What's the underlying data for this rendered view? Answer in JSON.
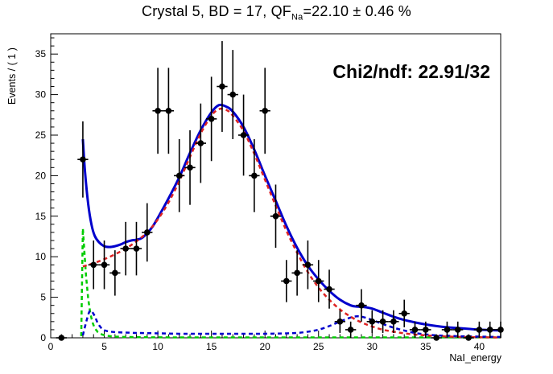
{
  "title": {
    "pre": "Crystal 5, BD = 17, QF",
    "sub": "Na",
    "post": "=22.10 ± 0.46 %"
  },
  "annotation": {
    "text": "Chi2/ndf: 22.91/32"
  },
  "colors": {
    "fit_blue": "#0000cc",
    "signal_red": "#dd2222",
    "background_green": "#00cc00",
    "data_black": "#000000"
  },
  "chart_data": {
    "type": "scatter",
    "title": "Crystal 5, BD = 17, QF_Na = 22.10 ± 0.46 %",
    "xlabel": "NaI_energy",
    "ylabel": "Events / ( 1 )",
    "xlim": [
      0,
      42
    ],
    "ylim": [
      0,
      37.5
    ],
    "x_major_ticks": [
      0,
      5,
      10,
      15,
      20,
      25,
      30,
      35,
      40
    ],
    "y_major_ticks": [
      0,
      5,
      10,
      15,
      20,
      25,
      30,
      35
    ],
    "minor_tick_step": 1,
    "grid": false,
    "legend": "none",
    "data_points": [
      [
        1,
        0,
        0
      ],
      [
        3,
        22,
        4.7
      ],
      [
        4,
        9,
        3
      ],
      [
        5,
        9,
        3
      ],
      [
        6,
        8,
        2.8
      ],
      [
        7,
        11,
        3.3
      ],
      [
        8,
        11,
        3.3
      ],
      [
        9,
        13,
        3.6
      ],
      [
        10,
        28,
        5.3
      ],
      [
        11,
        28,
        5.3
      ],
      [
        12,
        20,
        4.5
      ],
      [
        13,
        21,
        4.6
      ],
      [
        14,
        24,
        4.9
      ],
      [
        15,
        27,
        5.2
      ],
      [
        16,
        31,
        5.6
      ],
      [
        17,
        30,
        5.5
      ],
      [
        18,
        25,
        5
      ],
      [
        19,
        20,
        4.5
      ],
      [
        20,
        28,
        5.3
      ],
      [
        21,
        15,
        3.9
      ],
      [
        22,
        7,
        2.6
      ],
      [
        23,
        8,
        2.8
      ],
      [
        24,
        9,
        3
      ],
      [
        25,
        7,
        2.6
      ],
      [
        26,
        6,
        2.4
      ],
      [
        27,
        2,
        1.4
      ],
      [
        28,
        1,
        1
      ],
      [
        29,
        4,
        2
      ],
      [
        30,
        2,
        1.4
      ],
      [
        31,
        2,
        1.4
      ],
      [
        32,
        2,
        1.4
      ],
      [
        33,
        3,
        1.7
      ],
      [
        34,
        1,
        1
      ],
      [
        35,
        1,
        1
      ],
      [
        36,
        0,
        0
      ],
      [
        37,
        1,
        1
      ],
      [
        38,
        1,
        1
      ],
      [
        39,
        0,
        0
      ],
      [
        40,
        1,
        1
      ],
      [
        41,
        1,
        1
      ],
      [
        42,
        1,
        1
      ]
    ],
    "series": [
      {
        "name": "exp-background-green",
        "color": "#00cc00",
        "dash": "5 4",
        "width": 2.5,
        "smooth": false,
        "points": [
          [
            2.85,
            0.2
          ],
          [
            3.0,
            13.5
          ],
          [
            3.15,
            10.5
          ],
          [
            3.3,
            7.6
          ],
          [
            3.5,
            4.8
          ],
          [
            3.7,
            3.0
          ],
          [
            3.9,
            1.9
          ],
          [
            4.1,
            1.2
          ],
          [
            4.4,
            0.7
          ],
          [
            4.8,
            0.4
          ],
          [
            5.2,
            0.25
          ],
          [
            6,
            0.15
          ],
          [
            7,
            0.1
          ],
          [
            8,
            0.08
          ],
          [
            10,
            0.06
          ],
          [
            12,
            0.05
          ],
          [
            15,
            0.05
          ],
          [
            18,
            0.05
          ],
          [
            21,
            0.05
          ],
          [
            24,
            0.05
          ],
          [
            27,
            0.05
          ],
          [
            30,
            0.05
          ],
          [
            33,
            0.05
          ],
          [
            36,
            0.05
          ],
          [
            39,
            0.05
          ],
          [
            42,
            0.05
          ]
        ]
      },
      {
        "name": "nai-background-blue-dashed",
        "color": "#0000cc",
        "dash": "5 4",
        "width": 2.5,
        "smooth": true,
        "points": [
          [
            3,
            0.3
          ],
          [
            3.3,
            1.9
          ],
          [
            3.6,
            3.2
          ],
          [
            3.8,
            3.3
          ],
          [
            4.1,
            2.7
          ],
          [
            4.4,
            1.8
          ],
          [
            4.8,
            1.1
          ],
          [
            5.2,
            0.85
          ],
          [
            6,
            0.7
          ],
          [
            7,
            0.65
          ],
          [
            8,
            0.6
          ],
          [
            10,
            0.55
          ],
          [
            12,
            0.5
          ],
          [
            14,
            0.5
          ],
          [
            16,
            0.5
          ],
          [
            18,
            0.5
          ],
          [
            20,
            0.5
          ],
          [
            22,
            0.55
          ],
          [
            23,
            0.6
          ],
          [
            24,
            0.75
          ],
          [
            25,
            1.0
          ],
          [
            26,
            1.45
          ],
          [
            27,
            2.0
          ],
          [
            28,
            2.5
          ],
          [
            28.6,
            2.65
          ],
          [
            29.2,
            2.55
          ],
          [
            30,
            2.2
          ],
          [
            31,
            1.7
          ],
          [
            32,
            1.25
          ],
          [
            33,
            0.9
          ],
          [
            34,
            0.6
          ],
          [
            35,
            0.42
          ],
          [
            36,
            0.3
          ],
          [
            37,
            0.25
          ],
          [
            38,
            0.2
          ],
          [
            39,
            0.17
          ],
          [
            40,
            0.15
          ],
          [
            41,
            0.12
          ],
          [
            42,
            0.1
          ]
        ]
      },
      {
        "name": "total-fit-blue-solid",
        "color": "#0000cc",
        "dash": "",
        "width": 3,
        "smooth": true,
        "points": [
          [
            3,
            24.5
          ],
          [
            3.2,
            20.5
          ],
          [
            3.5,
            16.5
          ],
          [
            3.8,
            14.0
          ],
          [
            4.1,
            12.6
          ],
          [
            4.5,
            11.8
          ],
          [
            5,
            11.3
          ],
          [
            5.5,
            11.2
          ],
          [
            6,
            11.3
          ],
          [
            6.5,
            11.5
          ],
          [
            7,
            11.8
          ],
          [
            7.5,
            12.0
          ],
          [
            8,
            12.1
          ],
          [
            8.5,
            12.3
          ],
          [
            9,
            12.9
          ],
          [
            9.5,
            13.7
          ],
          [
            10,
            14.8
          ],
          [
            11,
            17.2
          ],
          [
            12,
            19.8
          ],
          [
            13,
            22.8
          ],
          [
            14,
            25.6
          ],
          [
            15,
            27.8
          ],
          [
            15.7,
            28.7
          ],
          [
            16.4,
            28.5
          ],
          [
            17,
            27.9
          ],
          [
            18,
            26.0
          ],
          [
            19,
            23.2
          ],
          [
            20,
            20.0
          ],
          [
            21,
            16.9
          ],
          [
            22,
            13.8
          ],
          [
            23,
            11.1
          ],
          [
            24,
            8.9
          ],
          [
            25,
            7.2
          ],
          [
            26,
            5.8
          ],
          [
            27,
            4.7
          ],
          [
            28,
            4.0
          ],
          [
            28.6,
            3.85
          ],
          [
            29.2,
            3.8
          ],
          [
            30,
            3.6
          ],
          [
            31,
            3.1
          ],
          [
            32,
            2.6
          ],
          [
            33,
            2.2
          ],
          [
            34,
            1.9
          ],
          [
            35,
            1.65
          ],
          [
            36,
            1.45
          ],
          [
            37,
            1.3
          ],
          [
            38,
            1.2
          ],
          [
            39,
            1.1
          ],
          [
            40,
            1.0
          ],
          [
            41,
            0.95
          ],
          [
            42,
            0.9
          ]
        ]
      },
      {
        "name": "signal-red-dashed",
        "color": "#dd2222",
        "dash": "5 4",
        "width": 2.5,
        "smooth": true,
        "points": [
          [
            3,
            8.8
          ],
          [
            4,
            9.2
          ],
          [
            5,
            9.7
          ],
          [
            6,
            10.3
          ],
          [
            7,
            11.0
          ],
          [
            8,
            11.9
          ],
          [
            9,
            13.0
          ],
          [
            10,
            14.6
          ],
          [
            11,
            16.7
          ],
          [
            12,
            19.3
          ],
          [
            13,
            22.3
          ],
          [
            14,
            25.2
          ],
          [
            15,
            27.4
          ],
          [
            15.7,
            28.2
          ],
          [
            16.4,
            28.1
          ],
          [
            17,
            27.4
          ],
          [
            18,
            25.5
          ],
          [
            19,
            22.7
          ],
          [
            20,
            19.5
          ],
          [
            21,
            16.3
          ],
          [
            22,
            13.2
          ],
          [
            23,
            10.5
          ],
          [
            24,
            8.1
          ],
          [
            25,
            6.2
          ],
          [
            26,
            4.7
          ],
          [
            27,
            3.5
          ],
          [
            28,
            2.6
          ],
          [
            29,
            1.9
          ],
          [
            30,
            1.4
          ],
          [
            31,
            1.0
          ],
          [
            32,
            0.75
          ],
          [
            33,
            0.55
          ],
          [
            34,
            0.4
          ],
          [
            35,
            0.3
          ],
          [
            36,
            0.22
          ],
          [
            37,
            0.16
          ],
          [
            38,
            0.12
          ],
          [
            39,
            0.09
          ],
          [
            40,
            0.07
          ],
          [
            41,
            0.05
          ],
          [
            42,
            0.04
          ]
        ]
      }
    ]
  }
}
